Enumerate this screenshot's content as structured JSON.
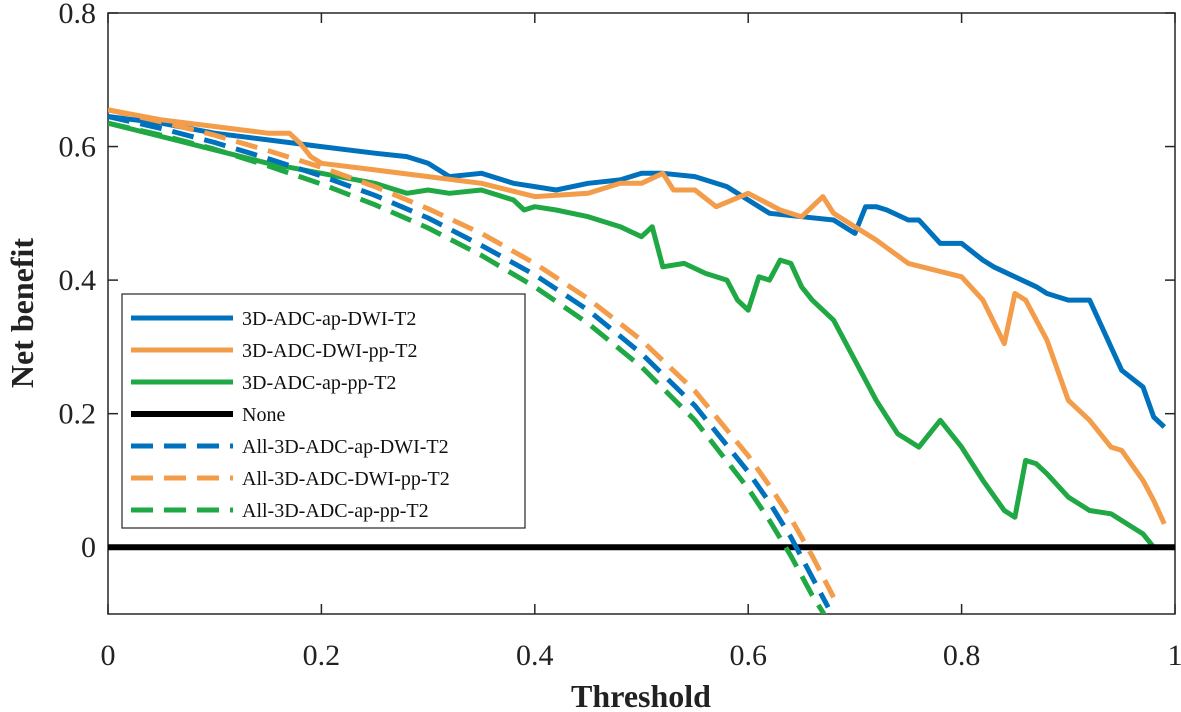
{
  "chart_data": {
    "type": "line",
    "title": "",
    "xlabel": "Threshold",
    "ylabel": "Net benefit",
    "xlim": [
      0,
      1
    ],
    "ylim": [
      -0.1,
      0.8
    ],
    "xticks": [
      0,
      0.2,
      0.4,
      0.6,
      0.8,
      1
    ],
    "xtick_labels": [
      "0",
      "0.2",
      "0.4",
      "0.6",
      "0.8",
      "1"
    ],
    "yticks": [
      0,
      0.2,
      0.4,
      0.6,
      0.8
    ],
    "ytick_labels": [
      "0",
      "0.2",
      "0.4",
      "0.6",
      "0.8"
    ],
    "grid": false,
    "legend_position": "lower-left",
    "series": [
      {
        "name": "3D-ADC-ap-DWI-T2",
        "color": "#0072BD",
        "dash": "solid",
        "x": [
          0,
          0.05,
          0.1,
          0.15,
          0.2,
          0.25,
          0.28,
          0.3,
          0.32,
          0.35,
          0.38,
          0.4,
          0.42,
          0.45,
          0.48,
          0.5,
          0.52,
          0.55,
          0.58,
          0.6,
          0.62,
          0.65,
          0.68,
          0.7,
          0.71,
          0.72,
          0.73,
          0.75,
          0.76,
          0.78,
          0.8,
          0.82,
          0.83,
          0.85,
          0.87,
          0.88,
          0.9,
          0.92,
          0.94,
          0.95,
          0.97,
          0.98,
          0.99
        ],
        "y": [
          0.645,
          0.635,
          0.62,
          0.61,
          0.6,
          0.59,
          0.585,
          0.575,
          0.555,
          0.56,
          0.545,
          0.54,
          0.535,
          0.545,
          0.55,
          0.56,
          0.56,
          0.555,
          0.54,
          0.52,
          0.5,
          0.495,
          0.49,
          0.47,
          0.51,
          0.51,
          0.505,
          0.49,
          0.49,
          0.455,
          0.455,
          0.43,
          0.42,
          0.405,
          0.39,
          0.38,
          0.37,
          0.37,
          0.3,
          0.265,
          0.24,
          0.195,
          0.18
        ]
      },
      {
        "name": "3D-ADC-DWI-pp-T2",
        "color": "#F39C4A",
        "dash": "solid",
        "x": [
          0,
          0.05,
          0.1,
          0.15,
          0.17,
          0.18,
          0.19,
          0.2,
          0.25,
          0.3,
          0.35,
          0.4,
          0.45,
          0.48,
          0.5,
          0.52,
          0.53,
          0.55,
          0.57,
          0.6,
          0.63,
          0.65,
          0.67,
          0.68,
          0.7,
          0.72,
          0.75,
          0.8,
          0.82,
          0.84,
          0.85,
          0.86,
          0.87,
          0.88,
          0.9,
          0.92,
          0.94,
          0.95,
          0.97,
          0.98,
          0.99
        ],
        "y": [
          0.655,
          0.64,
          0.63,
          0.62,
          0.62,
          0.605,
          0.585,
          0.575,
          0.565,
          0.555,
          0.545,
          0.525,
          0.53,
          0.545,
          0.545,
          0.56,
          0.535,
          0.535,
          0.51,
          0.53,
          0.505,
          0.495,
          0.525,
          0.5,
          0.48,
          0.46,
          0.425,
          0.405,
          0.37,
          0.305,
          0.38,
          0.37,
          0.34,
          0.31,
          0.22,
          0.19,
          0.15,
          0.145,
          0.1,
          0.07,
          0.035
        ]
      },
      {
        "name": "3D-ADC-ap-pp-T2",
        "color": "#1FA843",
        "dash": "solid",
        "x": [
          0,
          0.05,
          0.1,
          0.15,
          0.2,
          0.25,
          0.28,
          0.3,
          0.32,
          0.35,
          0.38,
          0.39,
          0.4,
          0.42,
          0.45,
          0.48,
          0.5,
          0.51,
          0.52,
          0.54,
          0.56,
          0.57,
          0.58,
          0.59,
          0.6,
          0.61,
          0.62,
          0.63,
          0.64,
          0.65,
          0.66,
          0.68,
          0.7,
          0.72,
          0.74,
          0.75,
          0.76,
          0.78,
          0.8,
          0.82,
          0.84,
          0.85,
          0.86,
          0.87,
          0.88,
          0.9,
          0.92,
          0.94,
          0.95,
          0.97,
          0.98
        ],
        "y": [
          0.635,
          0.615,
          0.595,
          0.575,
          0.56,
          0.545,
          0.53,
          0.535,
          0.53,
          0.535,
          0.52,
          0.505,
          0.51,
          0.505,
          0.495,
          0.48,
          0.465,
          0.48,
          0.42,
          0.425,
          0.41,
          0.405,
          0.4,
          0.37,
          0.355,
          0.405,
          0.4,
          0.43,
          0.425,
          0.39,
          0.37,
          0.34,
          0.28,
          0.22,
          0.17,
          0.16,
          0.15,
          0.19,
          0.15,
          0.1,
          0.055,
          0.045,
          0.13,
          0.125,
          0.11,
          0.075,
          0.055,
          0.05,
          0.04,
          0.02,
          0.0
        ]
      },
      {
        "name": "None",
        "color": "#000000",
        "dash": "solid",
        "x": [
          0,
          1
        ],
        "y": [
          0,
          0
        ]
      },
      {
        "name": "All-3D-ADC-ap-DWI-T2",
        "color": "#0072BD",
        "dash": "dashed",
        "x": [
          0,
          0.05,
          0.1,
          0.15,
          0.2,
          0.25,
          0.3,
          0.35,
          0.4,
          0.45,
          0.5,
          0.55,
          0.6,
          0.62,
          0.64,
          0.66,
          0.675
        ],
        "y": [
          0.645,
          0.627,
          0.606,
          0.582,
          0.556,
          0.527,
          0.493,
          0.452,
          0.408,
          0.355,
          0.29,
          0.212,
          0.113,
          0.067,
          0.015,
          -0.045,
          -0.09
        ]
      },
      {
        "name": "All-3D-ADC-DWI-pp-T2",
        "color": "#F39C4A",
        "dash": "dashed",
        "x": [
          0,
          0.05,
          0.1,
          0.15,
          0.2,
          0.25,
          0.3,
          0.35,
          0.4,
          0.45,
          0.5,
          0.55,
          0.6,
          0.62,
          0.64,
          0.66,
          0.68
        ],
        "y": [
          0.655,
          0.637,
          0.617,
          0.594,
          0.569,
          0.54,
          0.507,
          0.47,
          0.425,
          0.372,
          0.31,
          0.234,
          0.137,
          0.092,
          0.043,
          -0.013,
          -0.075
        ]
      },
      {
        "name": "All-3D-ADC-ap-pp-T2",
        "color": "#1FA843",
        "dash": "dashed",
        "x": [
          0,
          0.05,
          0.1,
          0.15,
          0.2,
          0.25,
          0.3,
          0.35,
          0.4,
          0.45,
          0.5,
          0.55,
          0.6,
          0.62,
          0.64,
          0.66,
          0.675
        ],
        "y": [
          0.635,
          0.617,
          0.596,
          0.571,
          0.544,
          0.513,
          0.478,
          0.437,
          0.39,
          0.335,
          0.27,
          0.19,
          0.088,
          0.04,
          -0.013,
          -0.072,
          -0.11
        ]
      }
    ]
  }
}
